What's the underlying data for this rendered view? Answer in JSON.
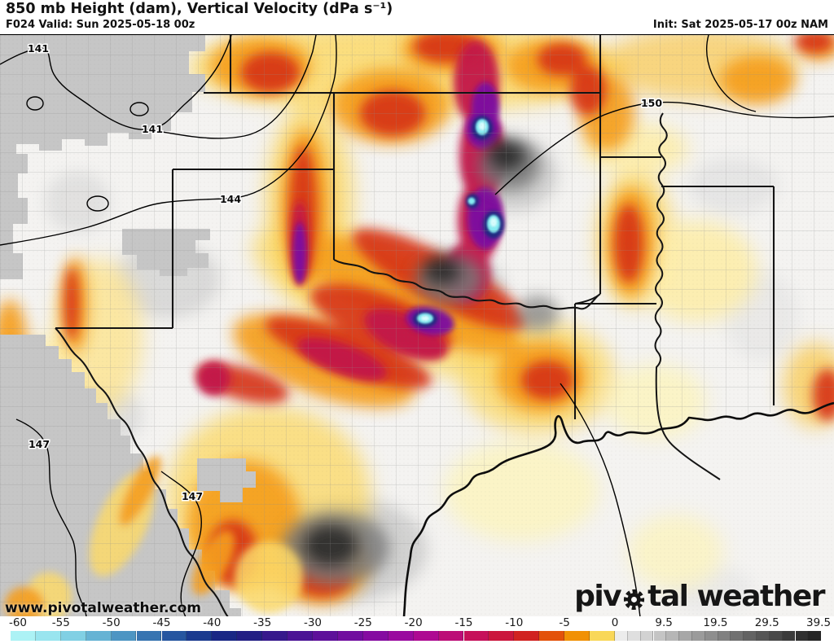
{
  "header": {
    "title": "850 mb Height (dam), Vertical Velocity (dPa s⁻¹)",
    "valid": "F024 Valid: Sun 2025-05-18 00z",
    "init": "Init: Sat 2025-05-17 00z NAM"
  },
  "map": {
    "watermark": "www.pivotalweather.com",
    "logo": {
      "pre": "piv",
      "post": "tal weather"
    },
    "contour_labels": [
      {
        "text": "141"
      },
      {
        "text": "141"
      },
      {
        "text": "144"
      },
      {
        "text": "147"
      },
      {
        "text": "147"
      },
      {
        "text": "150"
      }
    ],
    "height_contours_dam": [
      141,
      144,
      147,
      150
    ]
  },
  "colorbar": {
    "ticks": [
      {
        "value": -60,
        "label": "-60"
      },
      {
        "value": -55,
        "label": "-55"
      },
      {
        "value": -50,
        "label": "-50"
      },
      {
        "value": -45,
        "label": "-45"
      },
      {
        "value": -40,
        "label": "-40"
      },
      {
        "value": -35,
        "label": "-35"
      },
      {
        "value": -30,
        "label": "-30"
      },
      {
        "value": -25,
        "label": "-25"
      },
      {
        "value": -20,
        "label": "-20"
      },
      {
        "value": -15,
        "label": "-15"
      },
      {
        "value": -10,
        "label": "-10"
      },
      {
        "value": -5,
        "label": "-5"
      },
      {
        "value": 0,
        "label": "0"
      },
      {
        "value": 9.5,
        "label": "9.5"
      },
      {
        "value": 19.5,
        "label": "19.5"
      },
      {
        "value": 29.5,
        "label": "29.5"
      },
      {
        "value": 39.5,
        "label": "39.5"
      }
    ],
    "range": [
      -60,
      40
    ],
    "stops": [
      [
        -60,
        "#b6f8f8"
      ],
      [
        -55,
        "#8fdeec"
      ],
      [
        -50,
        "#58a5cc"
      ],
      [
        -45,
        "#2c64a8"
      ],
      [
        -40,
        "#142c86"
      ],
      [
        -36,
        "#231d84"
      ],
      [
        -32,
        "#451493"
      ],
      [
        -27,
        "#6b0e9e"
      ],
      [
        -22,
        "#930aa2"
      ],
      [
        -19,
        "#ad0a95"
      ],
      [
        -15,
        "#c30f6a"
      ],
      [
        -12,
        "#c91444"
      ],
      [
        -9,
        "#cf1d22"
      ],
      [
        -6,
        "#e55708"
      ],
      [
        -4,
        "#f08a00"
      ],
      [
        -2,
        "#f7c322"
      ],
      [
        -0.7,
        "#fbe680"
      ],
      [
        0,
        "#ffffff"
      ],
      [
        1,
        "#ededed"
      ],
      [
        5,
        "#d9d9d9"
      ],
      [
        9.5,
        "#c0c0c0"
      ],
      [
        14,
        "#a6a6a6"
      ],
      [
        19.5,
        "#8a8a8a"
      ],
      [
        24,
        "#6f6f6f"
      ],
      [
        29.5,
        "#525252"
      ],
      [
        34,
        "#3a3a3a"
      ],
      [
        40,
        "#1f1f1f"
      ]
    ]
  }
}
